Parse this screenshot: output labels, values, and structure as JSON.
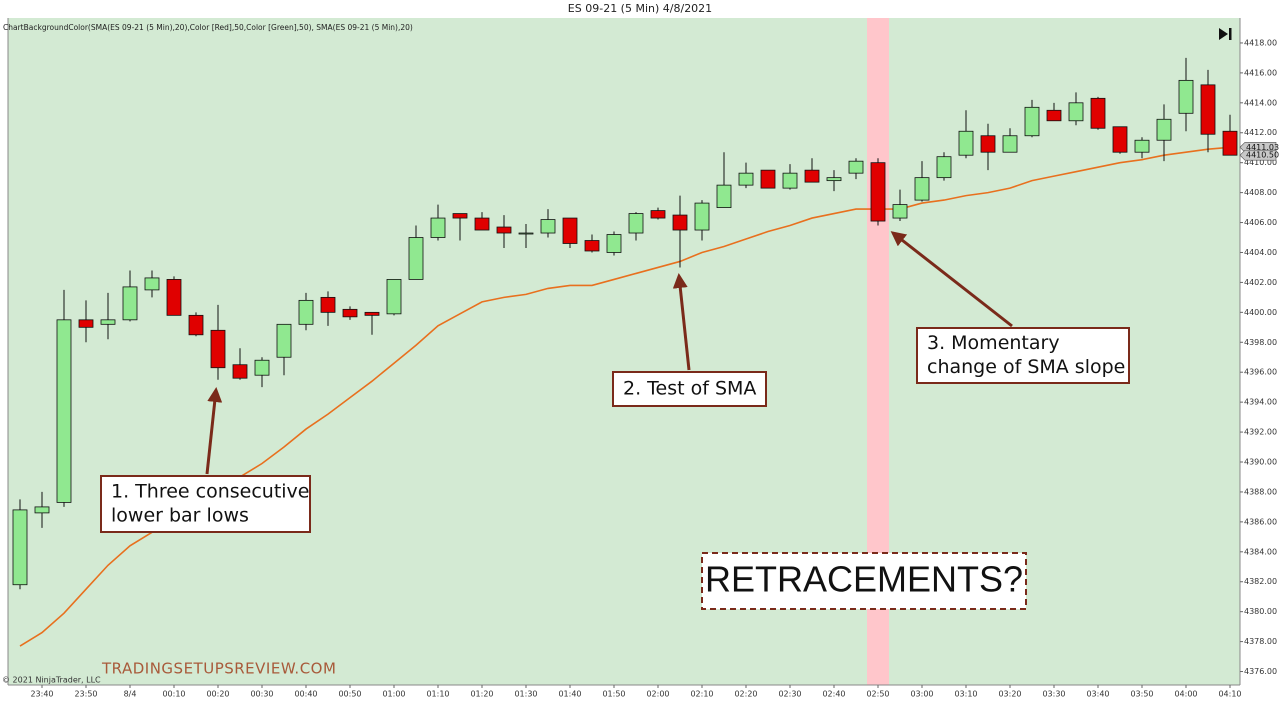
{
  "chart_data": {
    "type": "candlestick",
    "title": "ES 09-21 (5 Min)  4/8/2021",
    "subtitle": "ChartBackgroundColor(SMA(ES 09-21 (5 Min),20),Color [Red],50,Color [Green],50), SMA(ES 09-21 (5 Min),20)",
    "copyright": "© 2021 NinjaTrader, LLC",
    "watermark": "TRADINGSETUPSREVIEW.COM",
    "headline": "RETRACEMENTS?",
    "annotations": [
      {
        "lines": [
          "1. Three consecutive",
          "lower bar lows"
        ]
      },
      {
        "lines": [
          "2. Test of SMA"
        ]
      },
      {
        "lines": [
          "3. Momentary",
          "change of SMA slope"
        ]
      }
    ],
    "categories": [
      null,
      "23:40",
      null,
      "23:50",
      null,
      "8/4",
      null,
      "00:10",
      null,
      "00:20",
      null,
      "00:30",
      null,
      "00:40",
      null,
      "00:50",
      null,
      "01:00",
      null,
      "01:10",
      null,
      "01:20",
      null,
      "01:30",
      null,
      "01:40",
      null,
      "01:50",
      null,
      "02:00",
      null,
      "02:10",
      null,
      "02:20",
      null,
      "02:30",
      null,
      "02:40",
      null,
      "02:50",
      null,
      "03:00",
      null,
      "03:10",
      null,
      "03:20",
      null,
      "03:30",
      null,
      "03:40",
      null,
      "03:50",
      null,
      "04:00",
      null,
      "04:10"
    ],
    "open": [
      4381.8,
      4386.6,
      4387.3,
      4399.5,
      4399.2,
      4399.5,
      4401.5,
      4402.2,
      4399.8,
      4398.8,
      4396.5,
      4395.8,
      4397.0,
      4399.2,
      4401.0,
      4400.2,
      4400.0,
      4399.9,
      4402.2,
      4405.0,
      4406.6,
      4406.3,
      4405.7,
      4405.3,
      4405.3,
      4406.3,
      4404.8,
      4404.0,
      4405.3,
      4406.8,
      4406.5,
      4405.5,
      4407.0,
      4408.5,
      4409.5,
      4408.3,
      4409.5,
      4408.8,
      4409.3,
      4410.0,
      4406.3,
      4407.5,
      4409.0,
      4410.5,
      4411.8,
      4410.7,
      4411.8,
      4413.5,
      4412.8,
      4414.3,
      4412.4,
      4410.7,
      4411.5,
      4413.3,
      4415.2,
      4412.1
    ],
    "high": [
      4387.5,
      4388.0,
      4401.5,
      4400.8,
      4401.3,
      4402.8,
      4402.8,
      4402.4,
      4400.0,
      4400.5,
      4397.6,
      4397.0,
      4399.2,
      4401.3,
      4401.4,
      4400.4,
      4400.0,
      4402.2,
      4405.8,
      4407.2,
      4406.6,
      4406.7,
      4406.5,
      4405.9,
      4406.9,
      4406.3,
      4405.2,
      4405.4,
      4406.7,
      4407.0,
      4407.8,
      4407.5,
      4410.7,
      4410.0,
      4409.5,
      4409.9,
      4410.3,
      4409.5,
      4410.3,
      4410.3,
      4408.2,
      4410.1,
      4410.7,
      4413.5,
      4412.6,
      4412.3,
      4414.2,
      4414.0,
      4414.7,
      4414.4,
      4412.4,
      4411.7,
      4413.9,
      4417.0,
      4416.2,
      4413.2
    ],
    "low": [
      4381.5,
      4385.6,
      4387.0,
      4398.0,
      4398.2,
      4399.4,
      4401.0,
      4399.8,
      4398.4,
      4395.5,
      4395.5,
      4395.0,
      4395.8,
      4398.8,
      4399.1,
      4399.5,
      4398.5,
      4399.8,
      4402.2,
      4404.8,
      4404.8,
      4405.5,
      4404.3,
      4404.3,
      4405.0,
      4404.3,
      4404.0,
      4403.8,
      4404.8,
      4406.2,
      4403.0,
      4404.8,
      4407.0,
      4408.3,
      4408.3,
      4408.2,
      4408.7,
      4408.1,
      4408.9,
      4405.8,
      4406.1,
      4407.4,
      4408.8,
      4410.3,
      4409.5,
      4410.7,
      4411.7,
      4412.8,
      4412.5,
      4412.2,
      4410.6,
      4410.3,
      4410.1,
      4412.1,
      4410.7,
      4410.5
    ],
    "close": [
      4386.8,
      4387.0,
      4399.5,
      4399.0,
      4399.5,
      4401.7,
      4402.3,
      4399.8,
      4398.5,
      4396.3,
      4395.6,
      4396.8,
      4399.2,
      4400.8,
      4400.0,
      4399.7,
      4399.8,
      4402.2,
      4405.0,
      4406.3,
      4406.3,
      4405.5,
      4405.3,
      4405.3,
      4406.2,
      4404.6,
      4404.1,
      4405.2,
      4406.6,
      4406.3,
      4405.5,
      4407.3,
      4408.5,
      4409.3,
      4408.3,
      4409.3,
      4408.7,
      4409.0,
      4410.1,
      4406.1,
      4407.2,
      4409.0,
      4410.4,
      4412.1,
      4410.7,
      4411.8,
      4413.7,
      4412.8,
      4414.0,
      4412.3,
      4410.7,
      4411.5,
      4412.9,
      4415.5,
      4411.9,
      4410.5
    ],
    "up_color": "#90e890",
    "down_color": "#e00000",
    "sma": {
      "color": "#e8701e",
      "values": [
        4377.7,
        4378.6,
        4379.9,
        4381.5,
        4383.1,
        4384.4,
        4385.3,
        4386.3,
        4387.3,
        4388.2,
        4389.0,
        4389.9,
        4391.0,
        4392.2,
        4393.2,
        4394.3,
        4395.4,
        4396.6,
        4397.8,
        4399.1,
        4399.9,
        4400.7,
        4401.0,
        4401.2,
        4401.6,
        4401.8,
        4401.8,
        4402.2,
        4402.6,
        4403.0,
        4403.4,
        4404.0,
        4404.4,
        4404.9,
        4405.4,
        4405.8,
        4406.3,
        4406.6,
        4406.9,
        4406.9,
        4406.9,
        4407.3,
        4407.5,
        4407.8,
        4408.0,
        4408.3,
        4408.8,
        4409.1,
        4409.4,
        4409.7,
        4410.0,
        4410.2,
        4410.5,
        4410.7,
        4410.9,
        4411.03
      ]
    },
    "price_tags": [
      4411.03,
      {
        "value": 4410.5,
        "label": "4410.50"
      }
    ],
    "background_color": "#d3ead3",
    "highlight_color": "#ffc6cb",
    "ylim": [
      4375.1,
      4419.4
    ],
    "yticks": [
      {
        "value": 4376,
        "label": "4376.00"
      },
      {
        "value": 4378,
        "label": "4378.00"
      },
      {
        "value": 4380,
        "label": "4380.00"
      },
      {
        "value": 4382,
        "label": "4382.00"
      },
      {
        "value": 4384,
        "label": "4384.00"
      },
      {
        "value": 4386,
        "label": "4386.00"
      },
      {
        "value": 4388,
        "label": "4388.00"
      },
      {
        "value": 4390,
        "label": "4390.00"
      },
      {
        "value": 4392,
        "label": "4392.00"
      },
      {
        "value": 4394,
        "label": "4394.00"
      },
      {
        "value": 4396,
        "label": "4396.00"
      },
      {
        "value": 4398,
        "label": "4398.00"
      },
      {
        "value": 4400,
        "label": "4400.00"
      },
      {
        "value": 4402,
        "label": "4402.00"
      },
      {
        "value": 4404,
        "label": "4404.00"
      },
      {
        "value": 4406,
        "label": "4406.00"
      },
      {
        "value": 4408,
        "label": "4408.00"
      },
      {
        "value": 4410,
        "label": "4410.00"
      },
      {
        "value": 4412,
        "label": "4412.00"
      },
      {
        "value": 4414,
        "label": "4414.00"
      },
      {
        "value": 4416,
        "label": "4416.00"
      },
      {
        "value": 4418,
        "label": "4418.00"
      }
    ]
  }
}
